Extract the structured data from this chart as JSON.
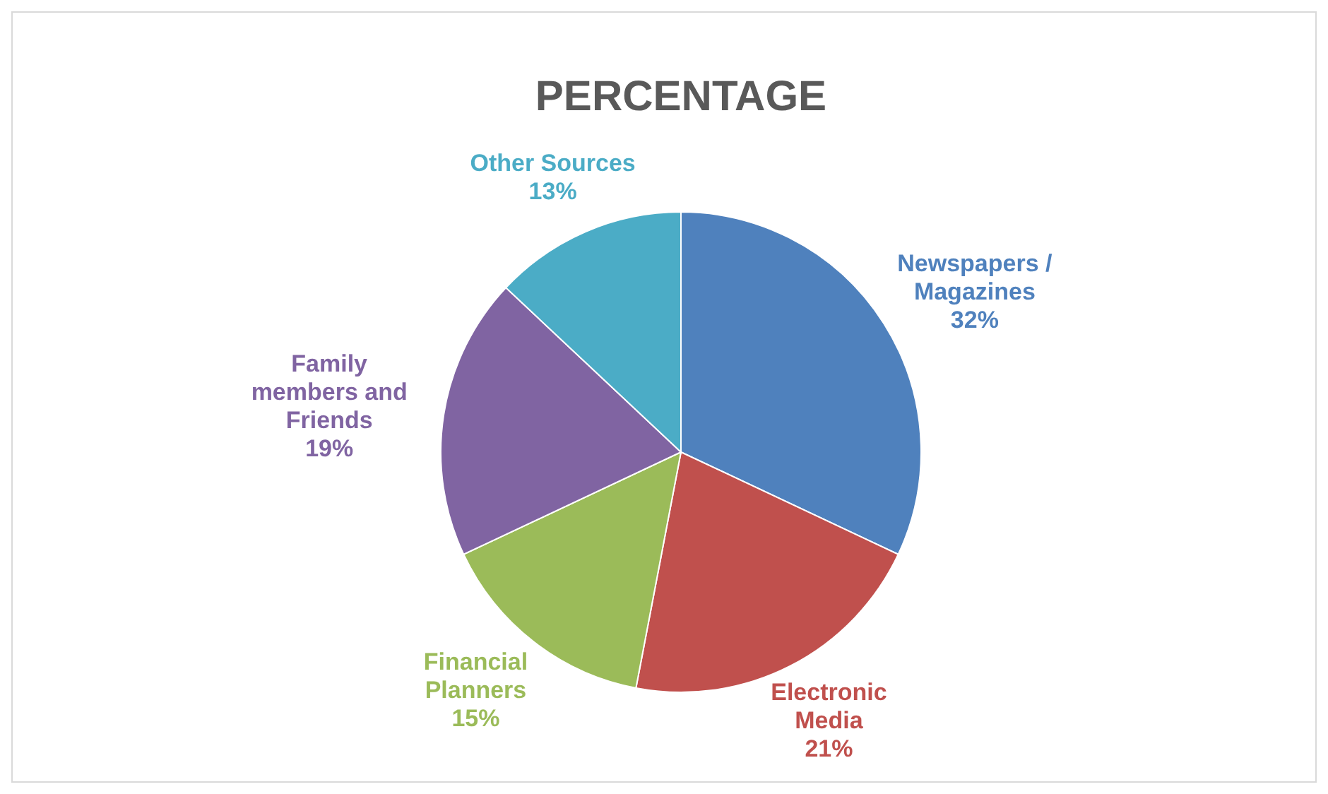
{
  "chart_data": {
    "type": "pie",
    "title": "PERCENTAGE",
    "categories": [
      "Newspapers / Magazines",
      "Electronic Media",
      "Financial Planners",
      "Family members and Friends",
      "Other Sources"
    ],
    "values": [
      32,
      21,
      15,
      19,
      13
    ],
    "colors": [
      "#4f81bd",
      "#c0504d",
      "#9bbb59",
      "#8064a2",
      "#4bacc6"
    ],
    "value_labels": [
      "32%",
      "21%",
      "15%",
      "19%",
      "13%"
    ]
  }
}
